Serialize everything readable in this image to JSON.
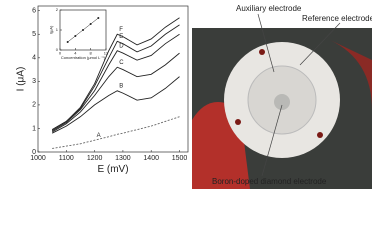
{
  "chart_data": [
    {
      "type": "line",
      "xlabel": "E (mV)",
      "ylabel": "I (μA)",
      "x": [
        1050,
        1100,
        1150,
        1200,
        1250,
        1280,
        1300,
        1350,
        1400,
        1450,
        1500
      ],
      "series": [
        {
          "name": "A",
          "color": "#666",
          "values": [
            0.15,
            0.25,
            0.35,
            0.5,
            0.65,
            0.75,
            0.8,
            0.95,
            1.1,
            1.3,
            1.5
          ]
        },
        {
          "name": "B",
          "color": "#222",
          "values": [
            0.8,
            1.1,
            1.5,
            2.0,
            2.4,
            2.6,
            2.5,
            2.2,
            2.3,
            2.7,
            3.2
          ]
        },
        {
          "name": "C",
          "color": "#222",
          "values": [
            0.85,
            1.2,
            1.7,
            2.4,
            3.2,
            3.6,
            3.5,
            3.2,
            3.3,
            3.7,
            4.2
          ]
        },
        {
          "name": "D",
          "color": "#222",
          "values": [
            0.9,
            1.25,
            1.8,
            2.6,
            3.7,
            4.3,
            4.2,
            3.9,
            4.1,
            4.6,
            5.0
          ]
        },
        {
          "name": "E",
          "color": "#222",
          "values": [
            0.95,
            1.3,
            1.85,
            2.8,
            4.0,
            4.7,
            4.6,
            4.25,
            4.5,
            5.0,
            5.4
          ]
        },
        {
          "name": "F",
          "color": "#222",
          "values": [
            0.95,
            1.3,
            1.9,
            2.9,
            4.3,
            5.0,
            4.9,
            4.55,
            4.8,
            5.3,
            5.7
          ]
        }
      ],
      "xlim": [
        1000,
        1530
      ],
      "xticks": [
        1000,
        1100,
        1200,
        1300,
        1400,
        1500
      ],
      "ylim": [
        0,
        6.2
      ],
      "yticks": [
        0,
        1,
        2,
        3,
        4,
        5,
        6
      ]
    },
    {
      "type": "scatter",
      "xlabel": "Concentration (μmol L⁻¹)",
      "ylabel": "I(μA)",
      "x": [
        2,
        4,
        6,
        8,
        10
      ],
      "series": [
        {
          "name": null,
          "color": "#222",
          "values": [
            0.4,
            0.7,
            1.0,
            1.3,
            1.6
          ]
        }
      ],
      "xlim": [
        0,
        12
      ],
      "xticks": [
        0,
        4,
        8,
        12
      ],
      "ylim": [
        0,
        2
      ],
      "yticks": [
        0,
        1,
        2
      ]
    }
  ],
  "photo_labels": [
    "Auxiliary electrode",
    "Reference electrode",
    "Boron-doped diamond electrode"
  ]
}
